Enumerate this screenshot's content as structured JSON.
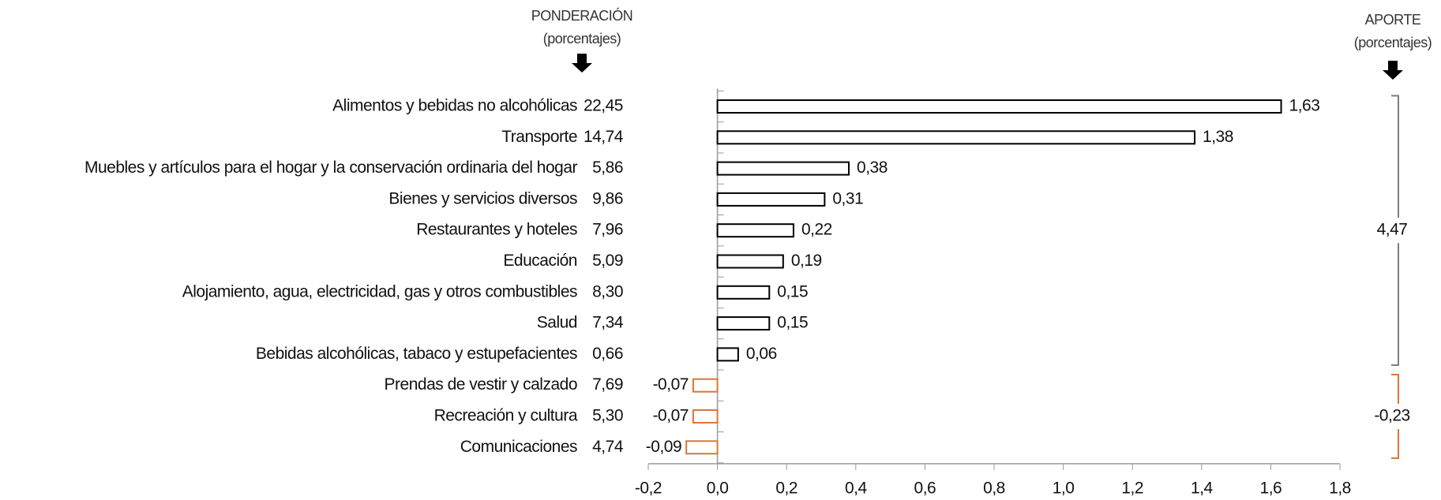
{
  "chart_data": {
    "type": "bar",
    "header_left": "PONDERACIÓN",
    "header_left_sub": "(porcentajes)",
    "header_right": "APORTE",
    "header_right_sub": "(porcentajes)",
    "categories": [
      "Alimentos y bebidas no alcohólicas",
      "Transporte",
      "Muebles y artículos para el hogar y la conservación ordinaria del hogar",
      "Bienes y servicios diversos",
      "Restaurantes y hoteles",
      "Educación",
      "Alojamiento, agua, electricidad, gas y otros combustibles",
      "Salud",
      "Bebidas alcohólicas, tabaco y estupefacientes",
      "Prendas de vestir y calzado",
      "Recreación y cultura",
      "Comunicaciones"
    ],
    "weights": [
      "22,45",
      "14,74",
      "5,86",
      "9,86",
      "7,96",
      "5,09",
      "8,30",
      "7,34",
      "0,66",
      "7,69",
      "5,30",
      "4,74"
    ],
    "values": [
      1.63,
      1.38,
      0.38,
      0.31,
      0.22,
      0.19,
      0.15,
      0.15,
      0.06,
      -0.07,
      -0.07,
      -0.09
    ],
    "value_labels": [
      "1,63",
      "1,38",
      "0,38",
      "0,31",
      "0,22",
      "0,19",
      "0,15",
      "0,15",
      "0,06",
      "-0,07",
      "-0,07",
      "-0,09"
    ],
    "color": "#000000",
    "negative_color": "#d9773a",
    "totals": [
      {
        "value": 4.47,
        "label": "4,47",
        "color": "#7f7f7f"
      },
      {
        "value": -0.23,
        "label": "-0,23",
        "color": "#d9773a"
      }
    ],
    "xlim": [
      -0.2,
      1.8
    ],
    "xticks": [
      {
        "value": -0.2,
        "label": "-0,2"
      },
      {
        "value": 0,
        "label": "0,0"
      },
      {
        "value": 0.2,
        "label": "0,2"
      },
      {
        "value": 0.4,
        "label": "0,4"
      },
      {
        "value": 0.6,
        "label": "0,6"
      },
      {
        "value": 0.8,
        "label": "0,8"
      },
      {
        "value": 1.0,
        "label": "1,0"
      },
      {
        "value": 1.2,
        "label": "1,2"
      },
      {
        "value": 1.4,
        "label": "1,4"
      },
      {
        "value": 1.6,
        "label": "1,6"
      },
      {
        "value": 1.8,
        "label": "1,8"
      }
    ]
  }
}
